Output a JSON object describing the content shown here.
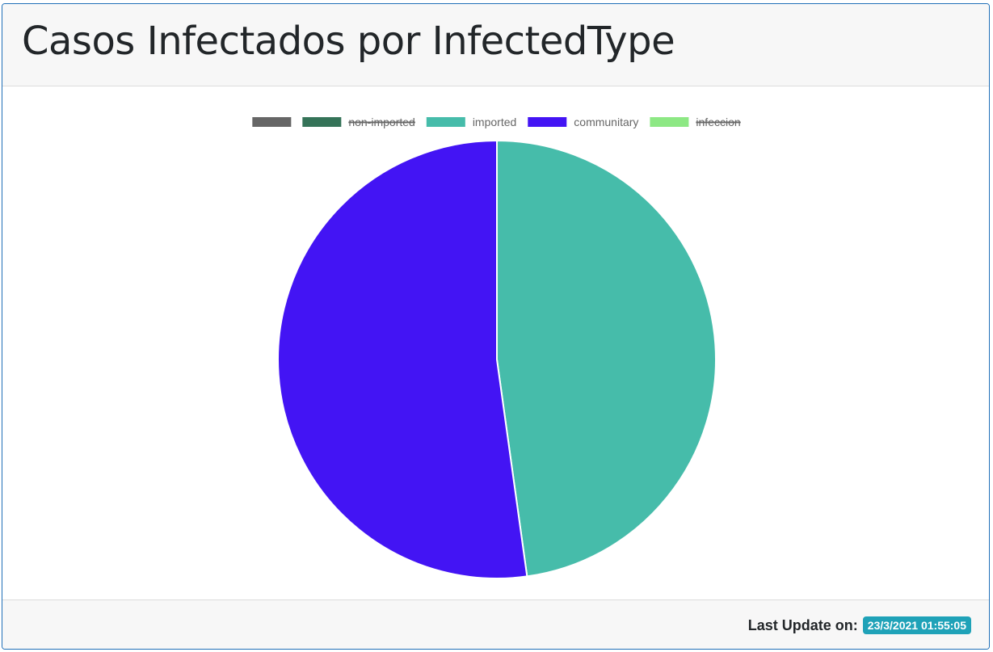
{
  "header": {
    "title": "Casos Infectados por InfectedType"
  },
  "footer": {
    "label": "Last Update on:",
    "timestamp": "23/3/2021 01:55:05",
    "badge_color": "#1fa2b8"
  },
  "chart_data": {
    "type": "pie",
    "title": "",
    "legend_position": "top",
    "series": [
      {
        "name": "",
        "value": 0,
        "color": "#666666",
        "hidden": false
      },
      {
        "name": "non-imported",
        "value": 0,
        "color": "#357358",
        "hidden": true
      },
      {
        "name": "imported",
        "value": 47.8,
        "color": "#46bcaa",
        "hidden": false
      },
      {
        "name": "communitary",
        "value": 52.2,
        "color": "#4314f4",
        "hidden": false
      },
      {
        "name": "infeccion",
        "value": 0,
        "color": "#8de884",
        "hidden": true
      }
    ]
  }
}
